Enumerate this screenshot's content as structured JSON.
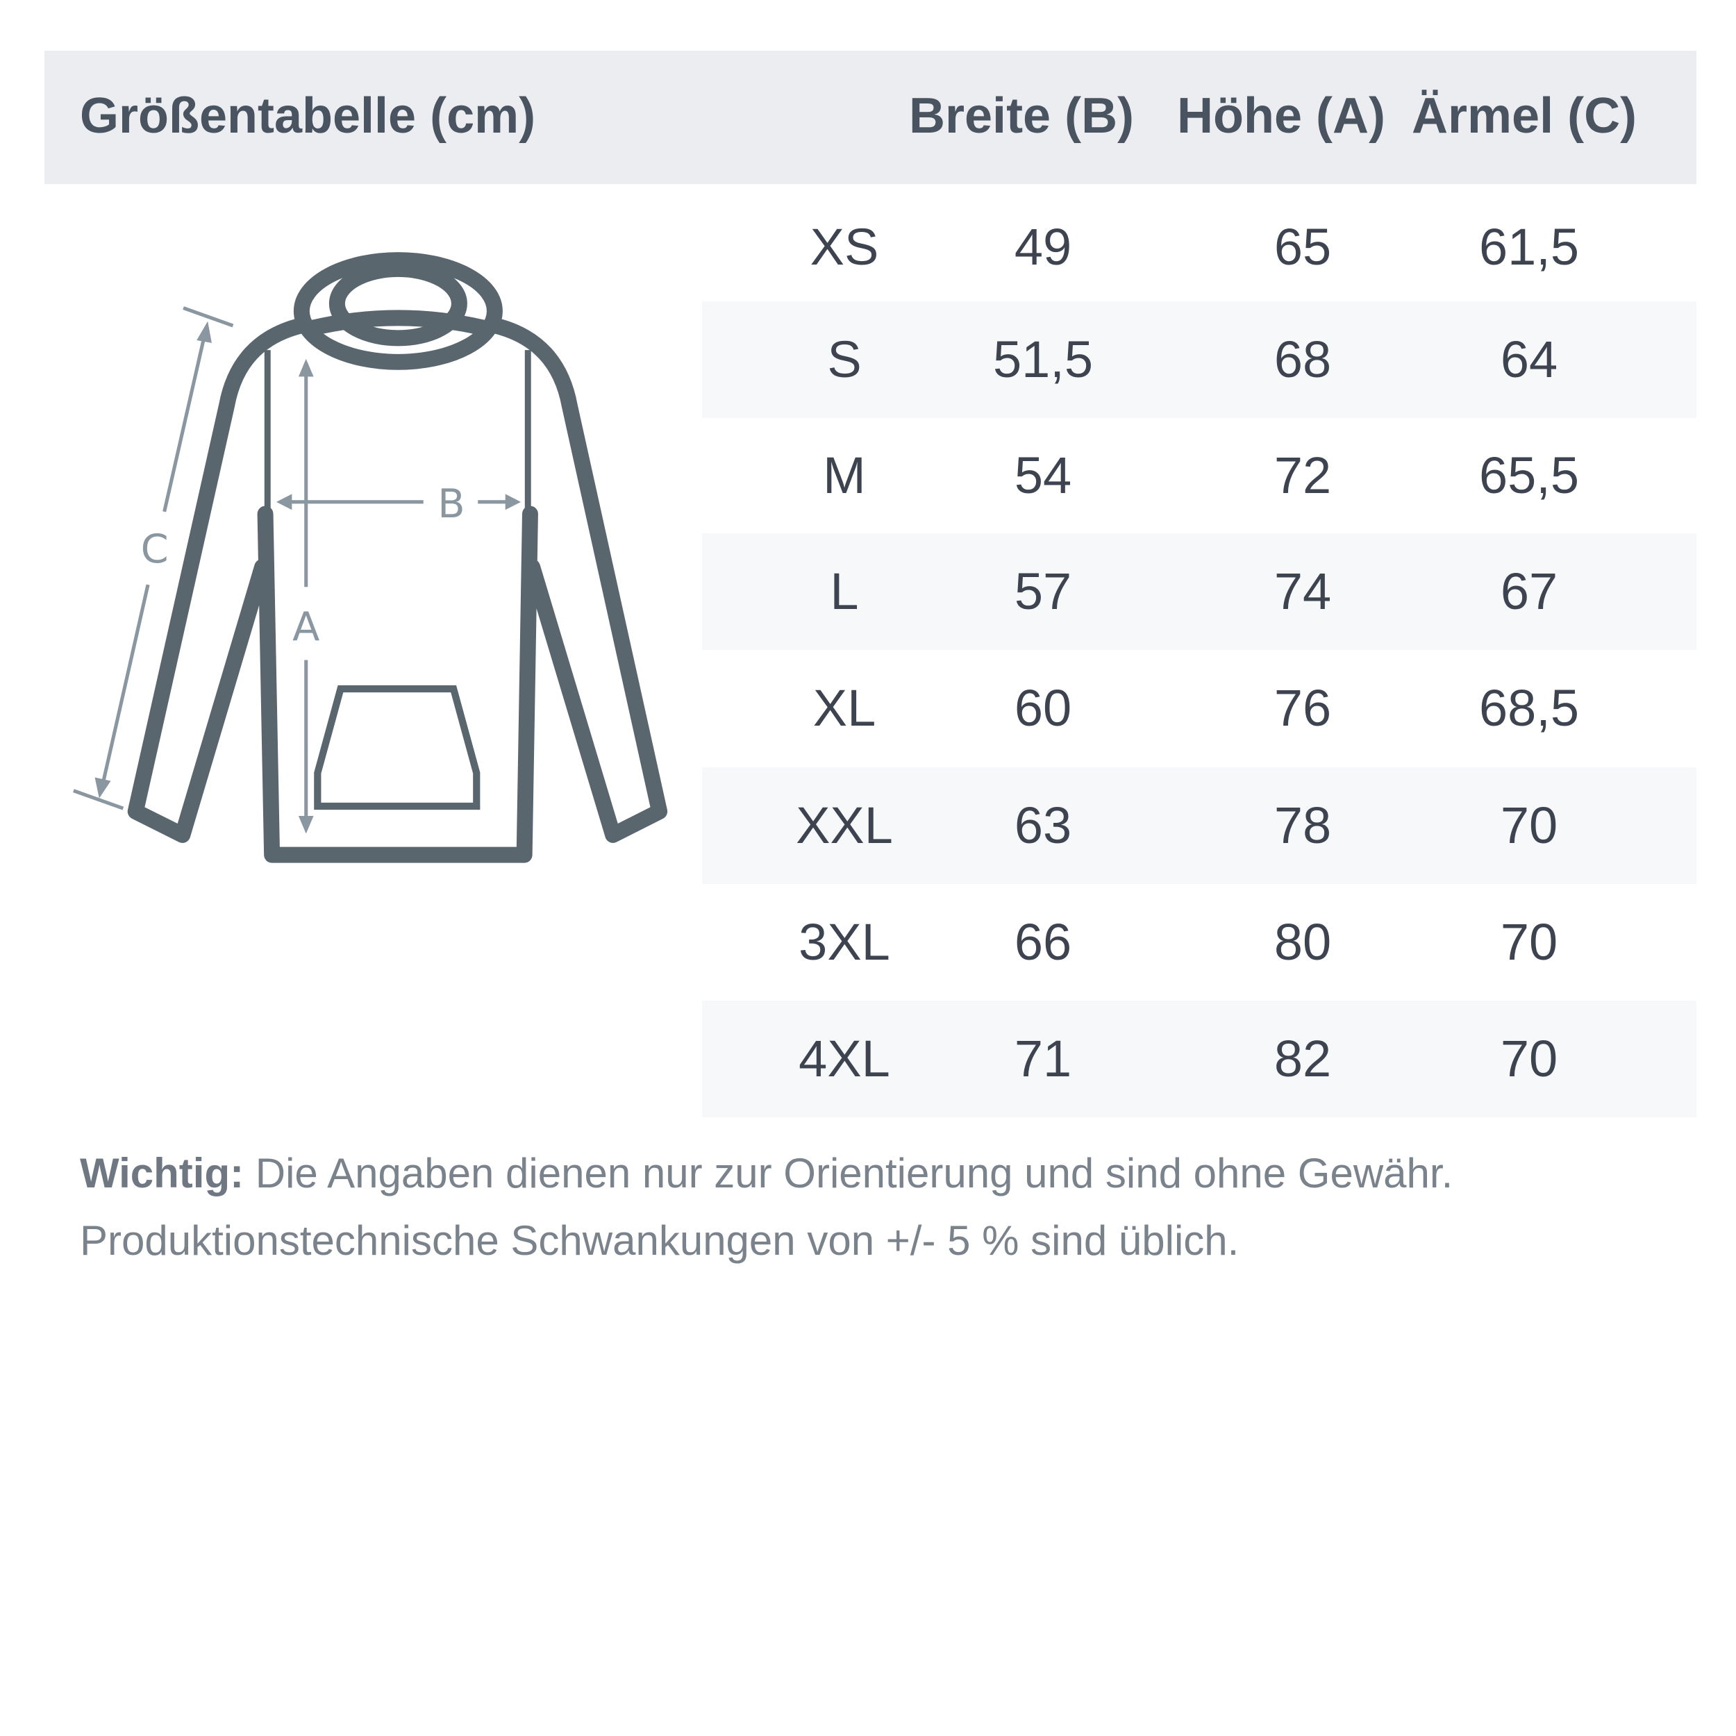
{
  "header": {
    "title": "Größentabelle (cm)",
    "columns": [
      "Breite (B)",
      "Höhe (A)",
      "Ärmel (C)"
    ]
  },
  "diagram": {
    "labels": {
      "a": "A",
      "b": "B",
      "c": "C"
    },
    "outline_color": "#5a666e",
    "arrow_color": "#8a96a0"
  },
  "rows": [
    {
      "size": "XS",
      "breite": "49",
      "hoehe": "65",
      "aermel": "61,5"
    },
    {
      "size": "S",
      "breite": "51,5",
      "hoehe": "68",
      "aermel": "64"
    },
    {
      "size": "M",
      "breite": "54",
      "hoehe": "72",
      "aermel": "65,5"
    },
    {
      "size": "L",
      "breite": "57",
      "hoehe": "74",
      "aermel": "67"
    },
    {
      "size": "XL",
      "breite": "60",
      "hoehe": "76",
      "aermel": "68,5"
    },
    {
      "size": "XXL",
      "breite": "63",
      "hoehe": "78",
      "aermel": "70"
    },
    {
      "size": "3XL",
      "breite": "66",
      "hoehe": "80",
      "aermel": "70"
    },
    {
      "size": "4XL",
      "breite": "71",
      "hoehe": "82",
      "aermel": "70"
    }
  ],
  "note": {
    "label": "Wichtig:",
    "line1": " Die Angaben dienen nur zur Orientierung und sind ohne Gewähr.",
    "line2": "Produktionstechnische Schwankungen von +/- 5 % sind üblich."
  }
}
